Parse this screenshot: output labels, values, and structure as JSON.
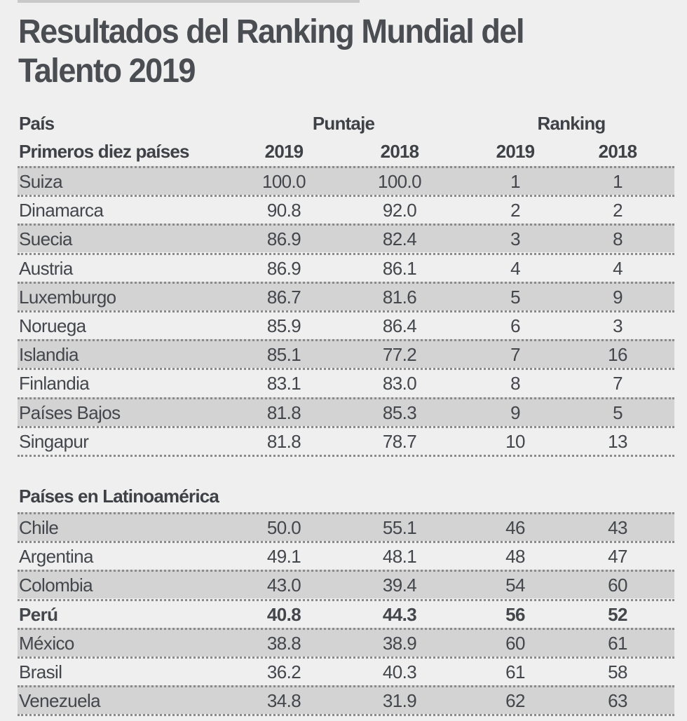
{
  "title": "Resultados del Ranking Mundial del Talento 2019",
  "header": {
    "country_label": "País",
    "score_label": "Puntaje",
    "ranking_label": "Ranking",
    "subheader_label": "Primeros diez países",
    "years": [
      "2019",
      "2018",
      "2019",
      "2018"
    ]
  },
  "colors": {
    "background": "#efefef",
    "shaded_row": "#d3d3d3",
    "text": "#43464b",
    "divider": "#8a8a8a"
  },
  "chart_data": {
    "type": "table",
    "title": "Resultados del Ranking Mundial del Talento 2019",
    "columns": [
      "País",
      "Puntaje 2019",
      "Puntaje 2018",
      "Ranking 2019",
      "Ranking 2018"
    ],
    "sections": [
      {
        "label": "Primeros diez países",
        "rows": [
          {
            "country": "Suiza",
            "score_2019": "100.0",
            "score_2018": "100.0",
            "rank_2019": "1",
            "rank_2018": "1",
            "shaded": true,
            "bold": false
          },
          {
            "country": "Dinamarca",
            "score_2019": "90.8",
            "score_2018": "92.0",
            "rank_2019": "2",
            "rank_2018": "2",
            "shaded": false,
            "bold": false
          },
          {
            "country": "Suecia",
            "score_2019": "86.9",
            "score_2018": "82.4",
            "rank_2019": "3",
            "rank_2018": "8",
            "shaded": true,
            "bold": false
          },
          {
            "country": "Austria",
            "score_2019": "86.9",
            "score_2018": "86.1",
            "rank_2019": "4",
            "rank_2018": "4",
            "shaded": false,
            "bold": false
          },
          {
            "country": "Luxemburgo",
            "score_2019": "86.7",
            "score_2018": "81.6",
            "rank_2019": "5",
            "rank_2018": "9",
            "shaded": true,
            "bold": false
          },
          {
            "country": "Noruega",
            "score_2019": "85.9",
            "score_2018": "86.4",
            "rank_2019": "6",
            "rank_2018": "3",
            "shaded": false,
            "bold": false
          },
          {
            "country": "Islandia",
            "score_2019": "85.1",
            "score_2018": "77.2",
            "rank_2019": "7",
            "rank_2018": "16",
            "shaded": true,
            "bold": false
          },
          {
            "country": "Finlandia",
            "score_2019": "83.1",
            "score_2018": "83.0",
            "rank_2019": "8",
            "rank_2018": "7",
            "shaded": false,
            "bold": false
          },
          {
            "country": "Países Bajos",
            "score_2019": "81.8",
            "score_2018": "85.3",
            "rank_2019": "9",
            "rank_2018": "5",
            "shaded": true,
            "bold": false
          },
          {
            "country": "Singapur",
            "score_2019": "81.8",
            "score_2018": "78.7",
            "rank_2019": "10",
            "rank_2018": "13",
            "shaded": false,
            "bold": false
          }
        ]
      },
      {
        "label": "Países en Latinoamérica",
        "rows": [
          {
            "country": "Chile",
            "score_2019": "50.0",
            "score_2018": "55.1",
            "rank_2019": "46",
            "rank_2018": "43",
            "shaded": true,
            "bold": false
          },
          {
            "country": "Argentina",
            "score_2019": "49.1",
            "score_2018": "48.1",
            "rank_2019": "48",
            "rank_2018": "47",
            "shaded": false,
            "bold": false
          },
          {
            "country": "Colombia",
            "score_2019": "43.0",
            "score_2018": "39.4",
            "rank_2019": "54",
            "rank_2018": "60",
            "shaded": true,
            "bold": false
          },
          {
            "country": "Perú",
            "score_2019": "40.8",
            "score_2018": "44.3",
            "rank_2019": "56",
            "rank_2018": "52",
            "shaded": false,
            "bold": true
          },
          {
            "country": "México",
            "score_2019": "38.8",
            "score_2018": "38.9",
            "rank_2019": "60",
            "rank_2018": "61",
            "shaded": true,
            "bold": false
          },
          {
            "country": "Brasil",
            "score_2019": "36.2",
            "score_2018": "40.3",
            "rank_2019": "61",
            "rank_2018": "58",
            "shaded": false,
            "bold": false
          },
          {
            "country": "Venezuela",
            "score_2019": "34.8",
            "score_2018": "31.9",
            "rank_2019": "62",
            "rank_2018": "63",
            "shaded": true,
            "bold": false
          }
        ]
      }
    ]
  }
}
